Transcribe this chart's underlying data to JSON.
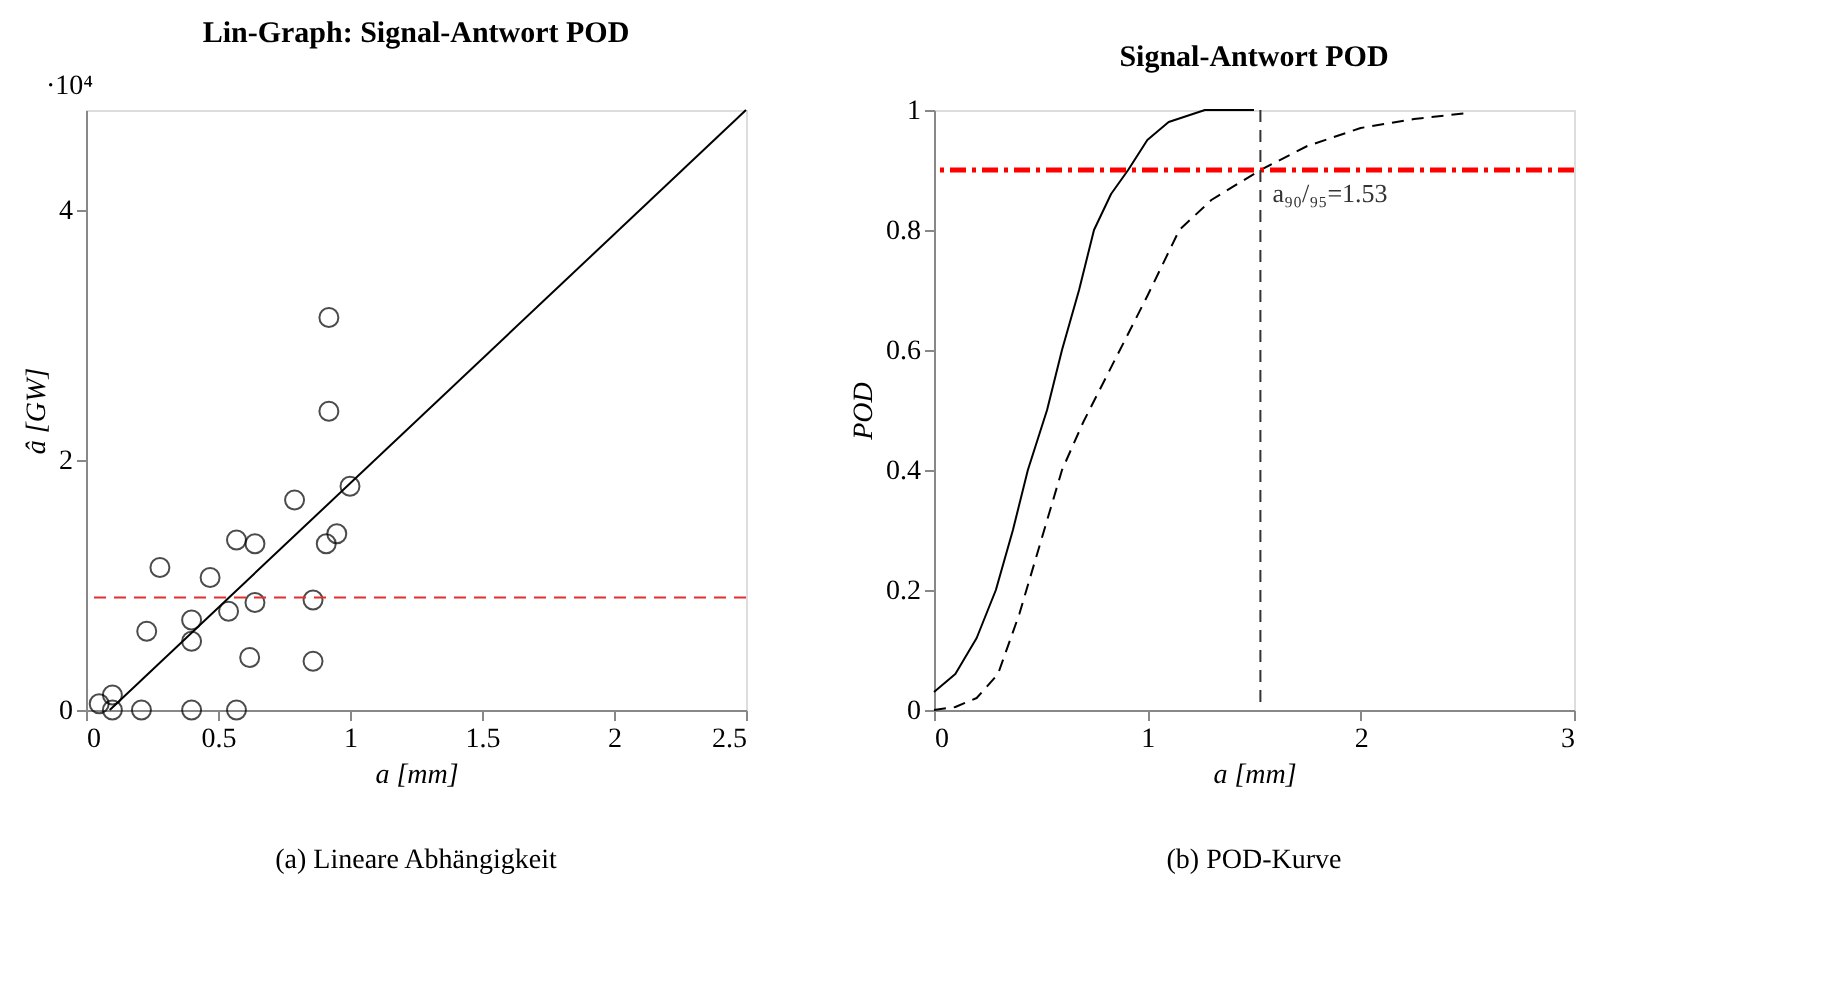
{
  "chart_data": [
    {
      "type": "scatter",
      "title": "Lin-Graph: Signal-Antwort POD",
      "xlabel": "a [mm]",
      "ylabel": "â [GW]",
      "marker": "circle",
      "grid": false,
      "xlim": [
        0,
        2.5
      ],
      "xticks": [
        0,
        0.5,
        1,
        1.5,
        2,
        2.5
      ],
      "ylim": [
        0,
        4.8
      ],
      "yticks": [
        0,
        2,
        4
      ],
      "x": [
        0.05,
        0.1,
        0.1,
        0.21,
        0.23,
        0.28,
        0.4,
        0.4,
        0.4,
        0.47,
        0.54,
        0.57,
        0.57,
        0.62,
        0.64,
        0.64,
        0.79,
        0.86,
        0.86,
        0.91,
        0.92,
        0.92,
        0.95,
        1.0
      ],
      "series": [
        {
          "type": "scatter",
          "color": "#000000",
          "values": [
            0.05,
            0.12,
            0,
            0,
            0.63,
            1.14,
            0,
            0.72,
            0.55,
            1.06,
            0.79,
            1.36,
            0,
            0.42,
            1.33,
            0.86,
            1.68,
            0.88,
            0.39,
            1.33,
            3.14,
            2.39,
            1.41,
            1.79
          ]
        },
        {
          "type": "line",
          "color": "#000000",
          "line_style": "solid",
          "marker": "none",
          "x": [
            0.09,
            2.5
          ],
          "values": [
            0,
            4.8
          ]
        }
      ],
      "ref_lines": [
        {
          "axis": "y",
          "value": 0.9,
          "color": "#e03030",
          "line_style": "dashed"
        }
      ],
      "annotations": [
        "·10⁴",
        "(a) Lineare Abhängigkeit"
      ]
    },
    {
      "type": "line",
      "title": "Signal-Antwort POD",
      "xlabel": "a [mm]",
      "ylabel": "POD",
      "grid": false,
      "xlim": [
        0,
        3
      ],
      "xticks": [
        0,
        1,
        2,
        3
      ],
      "ylim": [
        0,
        1
      ],
      "yticks": [
        0,
        0.2,
        0.4,
        0.6,
        0.8,
        1
      ],
      "series": [
        {
          "color": "#000000",
          "line_style": "solid",
          "x": [
            0,
            0.1,
            0.2,
            0.29,
            0.37,
            0.44,
            0.53,
            0.6,
            0.68,
            0.75,
            0.83,
            0.91,
            1.0,
            1.1,
            1.27,
            1.5
          ],
          "values": [
            0.03,
            0.06,
            0.12,
            0.2,
            0.3,
            0.4,
            0.5,
            0.6,
            0.7,
            0.8,
            0.86,
            0.9,
            0.95,
            0.98,
            1.0,
            1.0
          ]
        },
        {
          "color": "#000000",
          "line_style": "dashed",
          "x": [
            0,
            0.1,
            0.2,
            0.3,
            0.4,
            0.5,
            0.6,
            0.7,
            0.8,
            0.9,
            1.0,
            1.15,
            1.3,
            1.53,
            1.75,
            2.0,
            2.25,
            2.5
          ],
          "values": [
            0,
            0.005,
            0.02,
            0.06,
            0.16,
            0.28,
            0.4,
            0.48,
            0.55,
            0.62,
            0.69,
            0.8,
            0.85,
            0.9,
            0.94,
            0.97,
            0.985,
            0.995
          ]
        }
      ],
      "ref_lines": [
        {
          "axis": "y",
          "value": 0.9,
          "color": "#ff0000",
          "line_style": "dashdot"
        },
        {
          "axis": "x",
          "value": 1.53,
          "label": "a₉₀/₉₅=1.53",
          "color": "#333333",
          "line_style": "dashed"
        }
      ],
      "annotations": [
        "(b) POD-Kurve"
      ]
    }
  ]
}
